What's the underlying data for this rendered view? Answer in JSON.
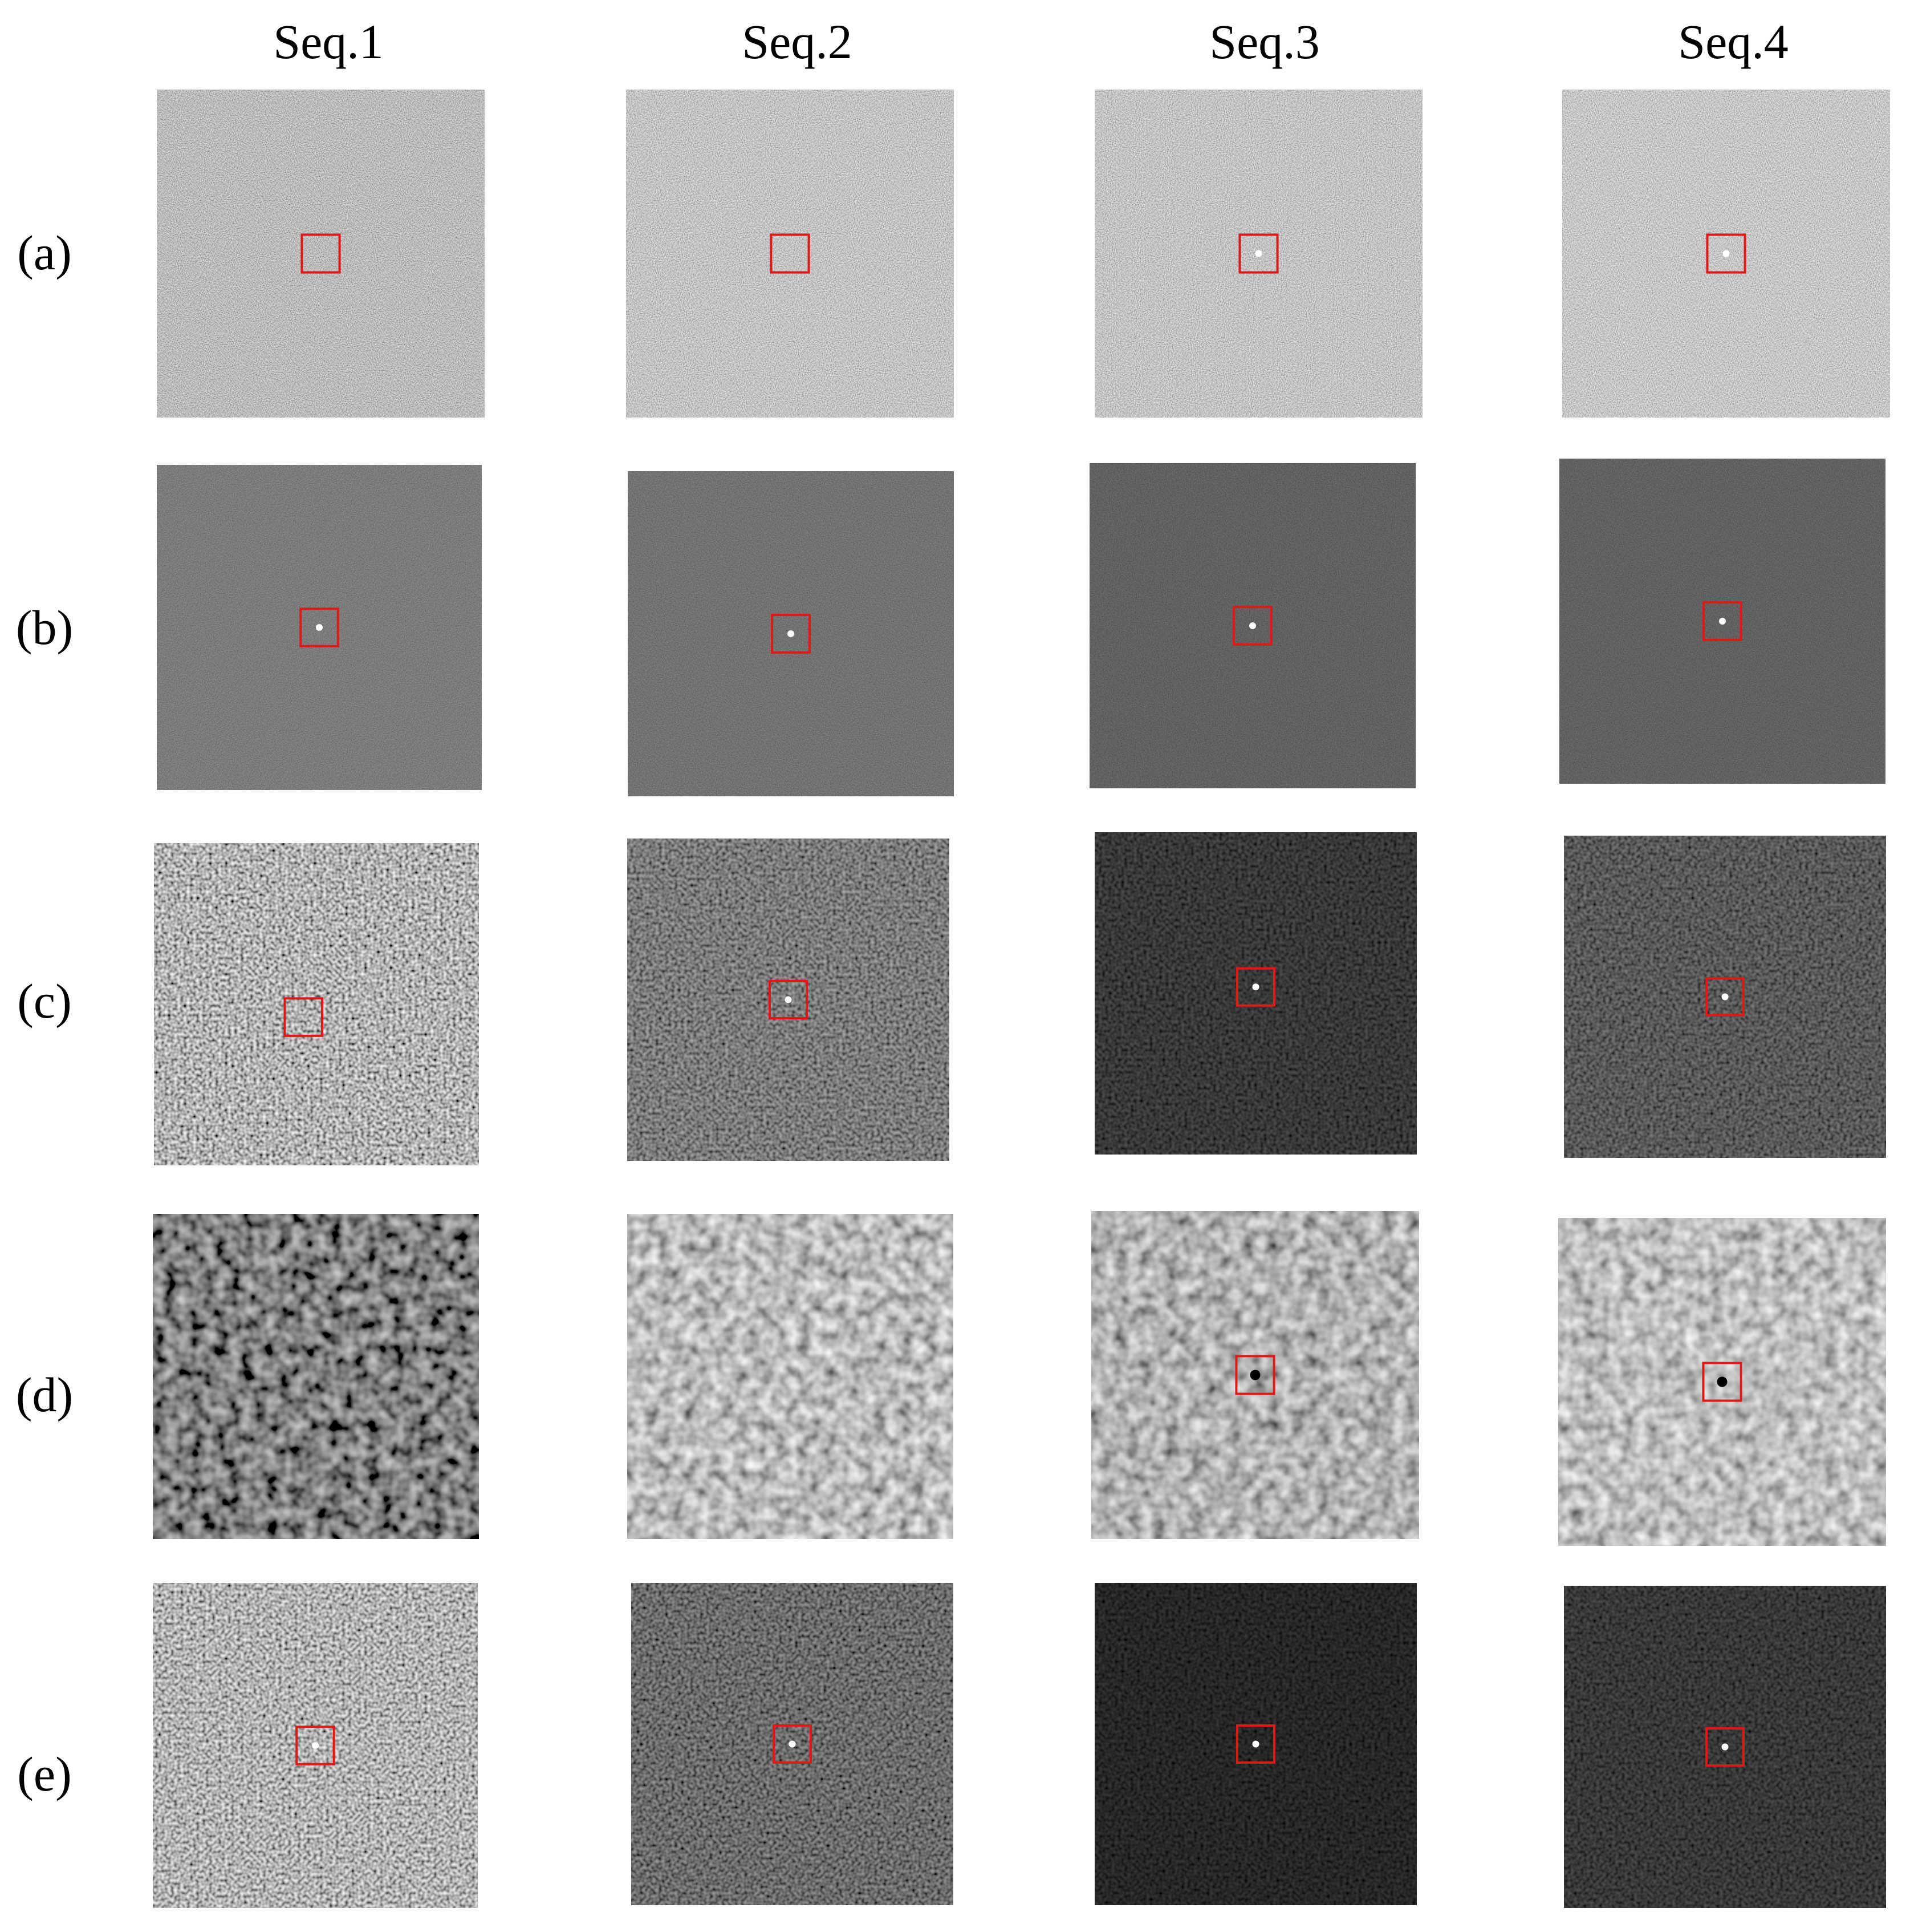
{
  "figure": {
    "column_headers": [
      "Seq.1",
      "Seq.2",
      "Seq.3",
      "Seq.4"
    ],
    "row_labels": [
      "(a)",
      "(b)",
      "(c)",
      "(d)",
      "(e)"
    ],
    "target_box_color": "#e01818",
    "rows": [
      {
        "label": "(a)",
        "panels": [
          {
            "background_level": 0.5,
            "noise_amplitude": 0.5,
            "grain": "fine",
            "target_box": true,
            "target_point": false
          },
          {
            "background_level": 0.55,
            "noise_amplitude": 0.5,
            "grain": "fine",
            "target_box": true,
            "target_point": false
          },
          {
            "background_level": 0.55,
            "noise_amplitude": 0.5,
            "grain": "fine",
            "target_box": true,
            "target_point": true
          },
          {
            "background_level": 0.57,
            "noise_amplitude": 0.5,
            "grain": "fine",
            "target_box": true,
            "target_point": true
          }
        ]
      },
      {
        "label": "(b)",
        "panels": [
          {
            "background_level": 0.2,
            "noise_amplitude": 0.12,
            "grain": "fine",
            "target_box": true,
            "target_point": true
          },
          {
            "background_level": 0.17,
            "noise_amplitude": 0.1,
            "grain": "fine",
            "target_box": true,
            "target_point": true
          },
          {
            "background_level": 0.12,
            "noise_amplitude": 0.07,
            "grain": "fine",
            "target_box": true,
            "target_point": true
          },
          {
            "background_level": 0.12,
            "noise_amplitude": 0.07,
            "grain": "fine",
            "target_box": true,
            "target_point": true
          }
        ]
      },
      {
        "label": "(c)",
        "panels": [
          {
            "background_level": 0.45,
            "noise_amplitude": 0.75,
            "grain": "medium",
            "target_box": true,
            "target_point": false
          },
          {
            "background_level": 0.2,
            "noise_amplitude": 0.3,
            "grain": "medium",
            "target_box": true,
            "target_point": true
          },
          {
            "background_level": 0.04,
            "noise_amplitude": 0.06,
            "grain": "medium",
            "target_box": true,
            "target_point": true
          },
          {
            "background_level": 0.1,
            "noise_amplitude": 0.15,
            "grain": "medium",
            "target_box": true,
            "target_point": true
          }
        ]
      },
      {
        "label": "(d)",
        "panels": [
          {
            "background_level": 0.22,
            "noise_amplitude": 0.45,
            "grain": "coarse",
            "target_box": false,
            "target_point": false
          },
          {
            "background_level": 0.5,
            "noise_amplitude": 0.55,
            "grain": "coarse",
            "target_box": false,
            "target_point": false
          },
          {
            "background_level": 0.45,
            "noise_amplitude": 0.5,
            "grain": "coarse",
            "target_box": true,
            "target_point": "dark"
          },
          {
            "background_level": 0.52,
            "noise_amplitude": 0.5,
            "grain": "coarse",
            "target_box": true,
            "target_point": "dark"
          }
        ]
      },
      {
        "label": "(e)",
        "panels": [
          {
            "background_level": 0.45,
            "noise_amplitude": 0.7,
            "grain": "medium",
            "target_box": true,
            "target_point": true
          },
          {
            "background_level": 0.15,
            "noise_amplitude": 0.25,
            "grain": "medium",
            "target_box": true,
            "target_point": true
          },
          {
            "background_level": 0.02,
            "noise_amplitude": 0.03,
            "grain": "medium",
            "target_box": true,
            "target_point": true
          },
          {
            "background_level": 0.04,
            "noise_amplitude": 0.06,
            "grain": "medium",
            "target_box": true,
            "target_point": true
          }
        ]
      }
    ]
  }
}
